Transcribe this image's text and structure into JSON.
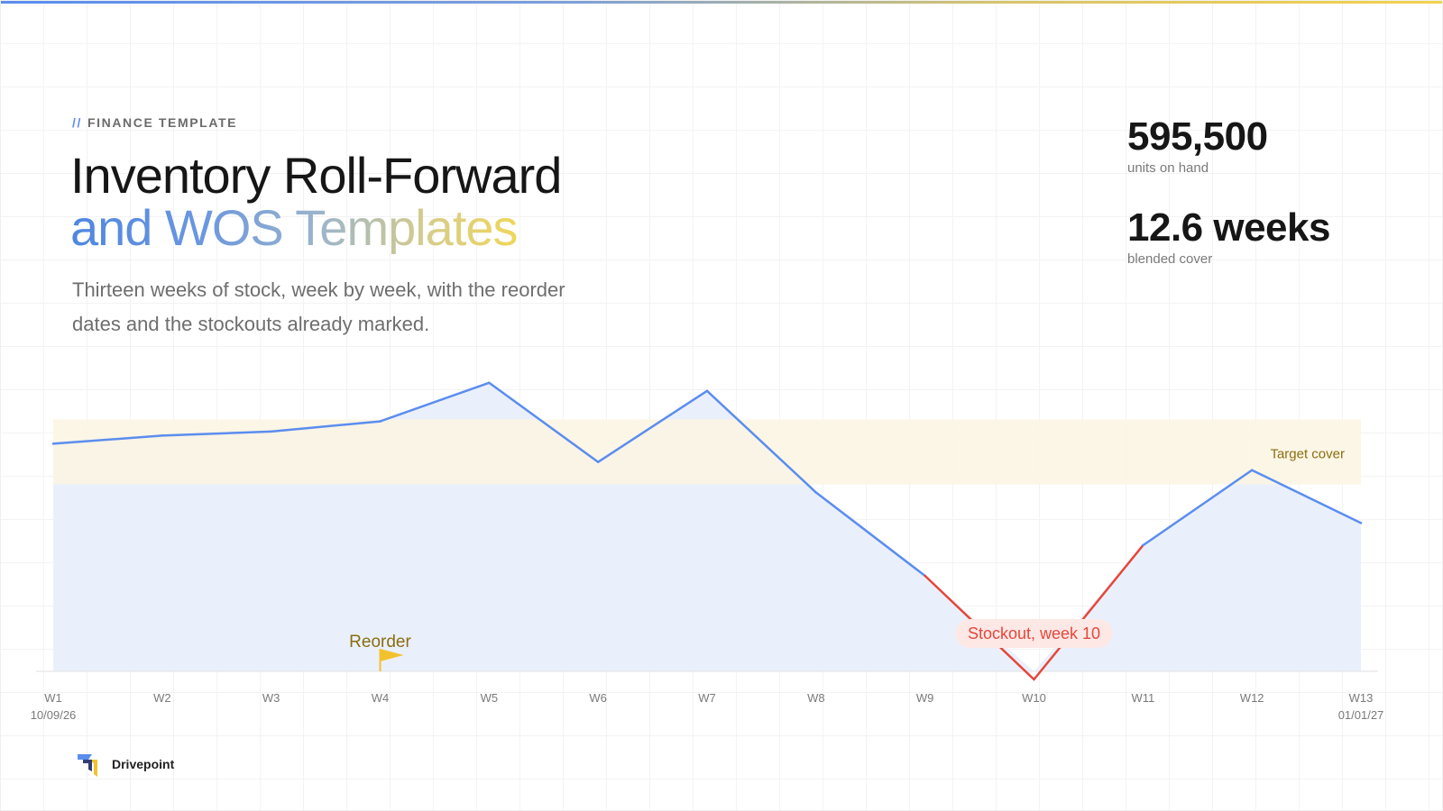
{
  "header": {
    "eyebrow_slashes": "//",
    "eyebrow": "FINANCE TEMPLATE",
    "title_line1": "Inventory Roll-Forward",
    "title_line2": "and WOS Templates",
    "subtitle": "Thirteen weeks of stock, week by week, with the reorder dates and the stockouts already marked."
  },
  "stats": [
    {
      "value": "595,500",
      "label": "units on hand"
    },
    {
      "value": "12.6 weeks",
      "label": "blended cover"
    }
  ],
  "brand": {
    "name": "Drivepoint"
  },
  "colors": {
    "series": "#5b8def",
    "area": "#eaf0fb",
    "stockout": "#e5473a",
    "stockout_bg": "#fde8e6",
    "target_band": "#fbf5e2",
    "target_text": "#8a6d10",
    "reorder": "#f2c12e",
    "reorder_text": "#8a6d10"
  },
  "chart_data": {
    "type": "area",
    "categories": [
      "W1",
      "W2",
      "W3",
      "W4",
      "W5",
      "W6",
      "W7",
      "W8",
      "W9",
      "W10",
      "W11",
      "W12",
      "W13"
    ],
    "x_start_label": "10/09/26",
    "x_end_label": "01/01/27",
    "values": [
      11.2,
      11.6,
      11.8,
      12.3,
      14.2,
      10.3,
      13.8,
      8.8,
      4.7,
      -0.4,
      6.2,
      9.9,
      7.3
    ],
    "ylim": [
      0,
      14.5
    ],
    "grid": true,
    "target_band": {
      "from": 9.2,
      "to": 12.4,
      "label": "Target cover"
    },
    "stockout": {
      "from_index": 8,
      "to_index": 10,
      "label": "Stockout, week 10"
    },
    "reorder": {
      "index": 3,
      "label": "Reorder"
    }
  }
}
